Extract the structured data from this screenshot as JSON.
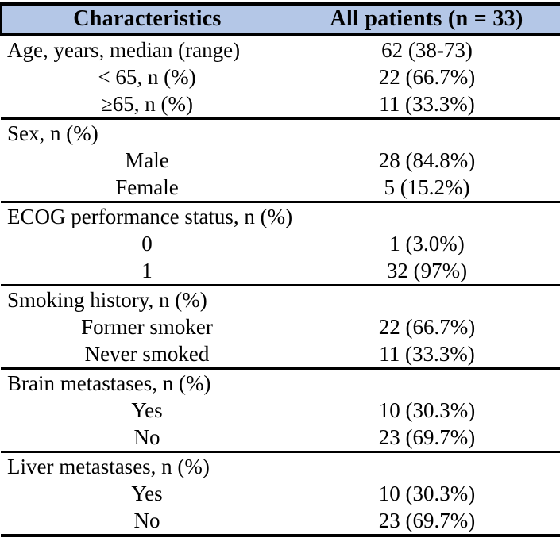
{
  "colors": {
    "header_bg": "#b4c7e7",
    "border": "#000000",
    "text": "#000000",
    "background": "#ffffff"
  },
  "table": {
    "columns": [
      "Characteristics",
      "All patients (n = 33)"
    ],
    "sections": [
      {
        "label": "Age, years, median (range)",
        "value": "62 (38-73)",
        "items": [
          {
            "label": "< 65, n (%)",
            "value": "22 (66.7%)"
          },
          {
            "label": "≥65, n (%)",
            "value": "11 (33.3%)"
          }
        ]
      },
      {
        "label": "Sex, n (%)",
        "value": "",
        "items": [
          {
            "label": "Male",
            "value": "28 (84.8%)"
          },
          {
            "label": "Female",
            "value": "5 (15.2%)"
          }
        ]
      },
      {
        "label": "ECOG performance status, n (%)",
        "value": "",
        "items": [
          {
            "label": "0",
            "value": "1 (3.0%)"
          },
          {
            "label": "1",
            "value": "32 (97%)"
          }
        ]
      },
      {
        "label": "Smoking history, n (%)",
        "value": "",
        "items": [
          {
            "label": "Former smoker",
            "value": "22 (66.7%)"
          },
          {
            "label": "Never smoked",
            "value": "11 (33.3%)"
          }
        ]
      },
      {
        "label": "Brain metastases, n (%)",
        "value": "",
        "items": [
          {
            "label": "Yes",
            "value": "10 (30.3%)"
          },
          {
            "label": "No",
            "value": "23 (69.7%)"
          }
        ]
      },
      {
        "label": "Liver metastases, n (%)",
        "value": "",
        "items": [
          {
            "label": "Yes",
            "value": "10 (30.3%)"
          },
          {
            "label": "No",
            "value": "23 (69.7%)"
          }
        ]
      }
    ]
  }
}
